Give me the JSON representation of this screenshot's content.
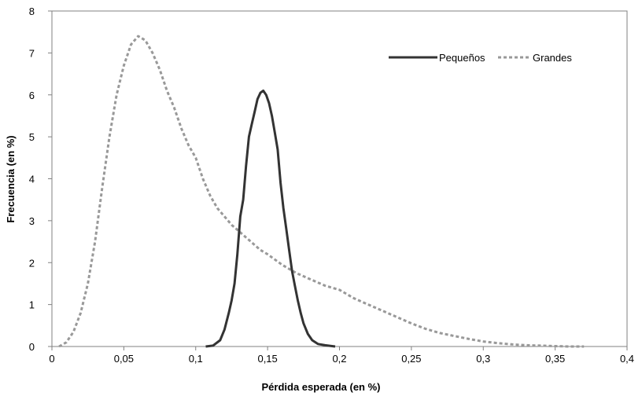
{
  "chart_data": {
    "type": "line",
    "title": "",
    "xlabel": "Pérdida esperada (en %)",
    "ylabel": "Frecuencia (en %)",
    "xlim": [
      0,
      0.4
    ],
    "ylim": [
      0,
      8
    ],
    "x_ticks": [
      0,
      0.05,
      0.1,
      0.15,
      0.2,
      0.25,
      0.3,
      0.35,
      0.4
    ],
    "x_tick_labels": [
      "0",
      "0,05",
      "0,1",
      "0,15",
      "0,2",
      "0,25",
      "0,3",
      "0,35",
      "0,4"
    ],
    "y_ticks": [
      0,
      1,
      2,
      3,
      4,
      5,
      6,
      7,
      8
    ],
    "y_tick_labels": [
      "0",
      "1",
      "2",
      "3",
      "4",
      "5",
      "6",
      "7",
      "8"
    ],
    "grid": false,
    "legend_position": "top-right",
    "series": [
      {
        "name": "Pequeños",
        "color": "#333333",
        "style": "solid",
        "points": [
          [
            0.107,
            0.0
          ],
          [
            0.112,
            0.02
          ],
          [
            0.117,
            0.15
          ],
          [
            0.12,
            0.4
          ],
          [
            0.123,
            0.8
          ],
          [
            0.125,
            1.1
          ],
          [
            0.127,
            1.5
          ],
          [
            0.129,
            2.2
          ],
          [
            0.131,
            3.1
          ],
          [
            0.133,
            3.5
          ],
          [
            0.135,
            4.3
          ],
          [
            0.137,
            5.0
          ],
          [
            0.139,
            5.3
          ],
          [
            0.141,
            5.6
          ],
          [
            0.143,
            5.9
          ],
          [
            0.145,
            6.05
          ],
          [
            0.147,
            6.1
          ],
          [
            0.149,
            6.0
          ],
          [
            0.151,
            5.8
          ],
          [
            0.153,
            5.5
          ],
          [
            0.155,
            5.1
          ],
          [
            0.157,
            4.7
          ],
          [
            0.159,
            3.9
          ],
          [
            0.161,
            3.3
          ],
          [
            0.163,
            2.8
          ],
          [
            0.165,
            2.3
          ],
          [
            0.167,
            1.8
          ],
          [
            0.169,
            1.45
          ],
          [
            0.171,
            1.1
          ],
          [
            0.173,
            0.8
          ],
          [
            0.175,
            0.55
          ],
          [
            0.178,
            0.3
          ],
          [
            0.181,
            0.15
          ],
          [
            0.185,
            0.06
          ],
          [
            0.19,
            0.03
          ],
          [
            0.197,
            0.0
          ]
        ]
      },
      {
        "name": "Grandes",
        "color": "#999999",
        "style": "dashed",
        "points": [
          [
            0.005,
            0.0
          ],
          [
            0.01,
            0.1
          ],
          [
            0.015,
            0.35
          ],
          [
            0.02,
            0.8
          ],
          [
            0.025,
            1.5
          ],
          [
            0.03,
            2.5
          ],
          [
            0.035,
            3.8
          ],
          [
            0.04,
            5.0
          ],
          [
            0.045,
            6.0
          ],
          [
            0.05,
            6.7
          ],
          [
            0.055,
            7.2
          ],
          [
            0.06,
            7.4
          ],
          [
            0.065,
            7.3
          ],
          [
            0.07,
            7.0
          ],
          [
            0.075,
            6.6
          ],
          [
            0.08,
            6.1
          ],
          [
            0.085,
            5.7
          ],
          [
            0.09,
            5.2
          ],
          [
            0.095,
            4.8
          ],
          [
            0.1,
            4.5
          ],
          [
            0.105,
            4.0
          ],
          [
            0.11,
            3.6
          ],
          [
            0.115,
            3.3
          ],
          [
            0.12,
            3.1
          ],
          [
            0.125,
            2.9
          ],
          [
            0.13,
            2.75
          ],
          [
            0.135,
            2.6
          ],
          [
            0.14,
            2.45
          ],
          [
            0.145,
            2.3
          ],
          [
            0.15,
            2.2
          ],
          [
            0.16,
            1.95
          ],
          [
            0.17,
            1.75
          ],
          [
            0.18,
            1.6
          ],
          [
            0.19,
            1.45
          ],
          [
            0.2,
            1.35
          ],
          [
            0.21,
            1.15
          ],
          [
            0.22,
            1.0
          ],
          [
            0.23,
            0.85
          ],
          [
            0.24,
            0.7
          ],
          [
            0.25,
            0.55
          ],
          [
            0.26,
            0.42
          ],
          [
            0.27,
            0.32
          ],
          [
            0.28,
            0.25
          ],
          [
            0.29,
            0.18
          ],
          [
            0.3,
            0.12
          ],
          [
            0.31,
            0.08
          ],
          [
            0.32,
            0.05
          ],
          [
            0.33,
            0.03
          ],
          [
            0.34,
            0.02
          ],
          [
            0.35,
            0.01
          ],
          [
            0.36,
            0.0
          ],
          [
            0.37,
            0.0
          ]
        ]
      }
    ]
  }
}
